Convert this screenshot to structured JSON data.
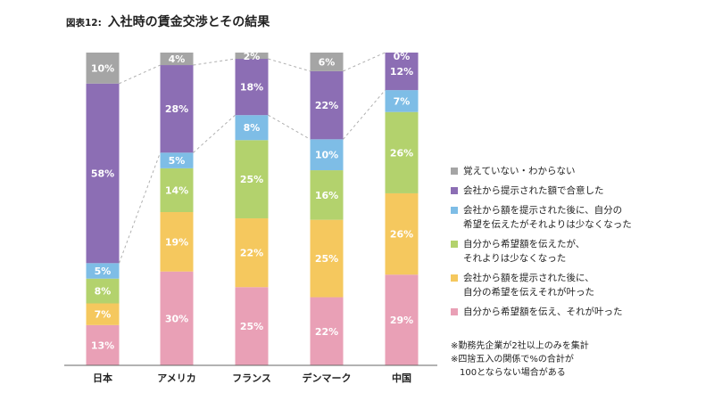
{
  "title": {
    "prefix": "図表12:",
    "text": "入社時の賃金交渉とその結果"
  },
  "chart_data": {
    "type": "bar",
    "stacked": true,
    "categories": [
      "日本",
      "アメリカ",
      "フランス",
      "デンマーク",
      "中国"
    ],
    "series": [
      {
        "name": "自分から希望額を伝え、それが叶った",
        "color": "#e9a0b6",
        "values": [
          13,
          30,
          25,
          22,
          29
        ]
      },
      {
        "name": "会社から額を提示された後に、\n自分の希望を伝えそれが叶った",
        "color": "#f5c85e",
        "values": [
          7,
          19,
          22,
          25,
          26
        ]
      },
      {
        "name": "自分から希望額を伝えたが、\nそれよりは少なくなった",
        "color": "#b3d26d",
        "values": [
          8,
          14,
          25,
          16,
          26
        ]
      },
      {
        "name": "会社から額を提示された後に、自分の\n希望を伝えたがそれよりは少なくなった",
        "color": "#7ebde6",
        "values": [
          5,
          5,
          8,
          10,
          7
        ]
      },
      {
        "name": "会社から提示された額で合意した",
        "color": "#8c6eb4",
        "values": [
          58,
          28,
          18,
          22,
          12
        ]
      },
      {
        "name": "覚えていない・わからない",
        "color": "#a5a5a5",
        "values": [
          10,
          4,
          2,
          6,
          0
        ]
      }
    ],
    "ylim": [
      0,
      100
    ],
    "value_suffix": "%",
    "legend": "right"
  },
  "notes": [
    "※勤務先企業が2社以上のみを集計",
    "※四捨五入の関係で%の合計が\n　100とならない場合がある"
  ]
}
